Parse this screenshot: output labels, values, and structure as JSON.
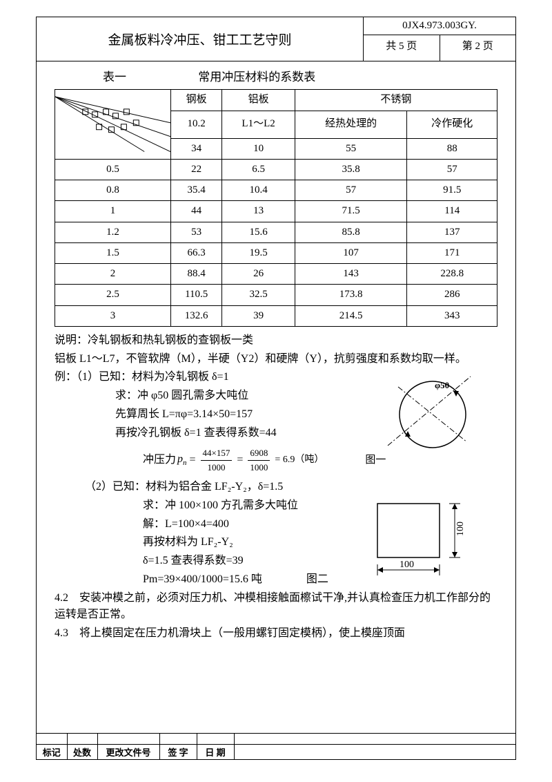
{
  "header": {
    "title": "金属板料冷冲压、钳工工艺守则",
    "doc_code": "0JX4.973.003GY.",
    "page_total": "共 5 页",
    "page_current": "第 2 页"
  },
  "table_caption_left": "表一",
  "table_caption_right": "常用冲压材料的系数表",
  "table": {
    "col_headers_top": [
      "钢板",
      "铝板",
      "不锈钢"
    ],
    "col_headers_mid": [
      "10.2",
      "L1～L2",
      "经热处理的",
      "冷作硬化"
    ],
    "col_headers_bot": [
      "34",
      "10",
      "55",
      "88"
    ],
    "rows": [
      [
        "0.5",
        "22",
        "6.5",
        "35.8",
        "57"
      ],
      [
        "0.8",
        "35.4",
        "10.4",
        "57",
        "91.5"
      ],
      [
        "1",
        "44",
        "13",
        "71.5",
        "114"
      ],
      [
        "1.2",
        "53",
        "15.6",
        "85.8",
        "137"
      ],
      [
        "1.5",
        "66.3",
        "19.5",
        "107",
        "171"
      ],
      [
        "2",
        "88.4",
        "26",
        "143",
        "228.8"
      ],
      [
        "2.5",
        "110.5",
        "32.5",
        "173.8",
        "286"
      ],
      [
        "3",
        "132.6",
        "39",
        "214.5",
        "343"
      ]
    ]
  },
  "text": {
    "note": "说明：冷轧钢板和热轧钢板的查钢板一类",
    "alu_note": "铝板 L1～L7，不管软牌（M），半硬（Y2）和硬牌（Y），抗剪强度和系数均取一样。",
    "ex1_l1": "例：（1）已知：材料为冷轧钢板 δ=1",
    "ex1_l2": "求：冲 φ50 圆孔需多大吨位",
    "ex1_l3": "先算周长 L=πφ=3.14×50=157",
    "ex1_l4": "再按冷孔钢板 δ=1 查表得系数=44",
    "formula_label": "冲压力",
    "formula_pn": "p",
    "formula_sub": "n",
    "frac1_num": "44×157",
    "frac1_den": "1000",
    "frac2_num": "6908",
    "frac2_den": "1000",
    "frac_result": "= 6.9（吨）",
    "fig1_label": "图一",
    "ex2_l1": "（2）已知：材料为铝合金 LF₂-Y₂，δ=1.5",
    "ex2_l2": "求：冲 100×100 方孔需多大吨位",
    "ex2_l3": "解：L=100×4=400",
    "ex2_l4": "再按材料为 LF₂-Y₂",
    "ex2_l5": "δ=1.5 查表得系数=39",
    "ex2_l6": "Pm=39×400/1000=15.6 吨",
    "fig2_label": "图二",
    "sec42": "4.2　安装冲模之前，必须对压力机、冲模相接触面檫试干净,并认真检查压力机工作部分的运转是否正常。",
    "sec43": "4.3　将上模固定在压力机滑块上（一般用螺钉固定模柄），使上模座顶面",
    "diagram_phi": "φ50",
    "rect_w": "100",
    "rect_h": "100"
  },
  "footer": {
    "c1": "标记",
    "c2": "处数",
    "c3": "更改文件号",
    "c4": "签 字",
    "c5": "日 期"
  },
  "colors": {
    "border": "#000000",
    "text": "#000000",
    "background": "#ffffff"
  }
}
